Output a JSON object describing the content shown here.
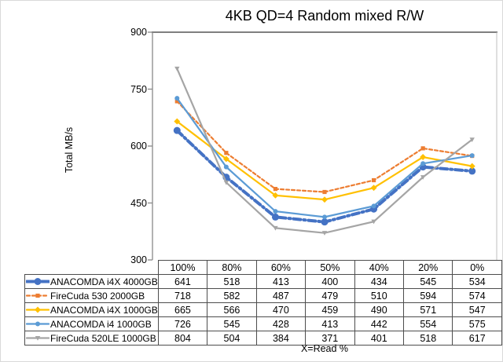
{
  "chart_data": {
    "type": "line",
    "title": "4KB QD=4 Random mixed R/W",
    "ylabel": "Total MB/s",
    "xlabel": "X=Read %",
    "categories": [
      "100%",
      "80%",
      "60%",
      "50%",
      "40%",
      "20%",
      "0%"
    ],
    "series": [
      {
        "name": "ANACOMDA i4X 4000GB",
        "values": [
          641,
          518,
          413,
          400,
          434,
          545,
          534
        ],
        "color": "#4472C4",
        "dash": "9 4 2 4",
        "width": 4,
        "marker": "circle",
        "marker_size": 4.5
      },
      {
        "name": "FireCuda 530 2000GB",
        "values": [
          718,
          582,
          487,
          479,
          510,
          594,
          574
        ],
        "color": "#ED7D31",
        "dash": "4 3",
        "width": 2.2,
        "marker": "square",
        "marker_size": 2.6
      },
      {
        "name": "ANACOMDA i4X 1000GB",
        "values": [
          665,
          566,
          470,
          459,
          490,
          571,
          547
        ],
        "color": "#FFC000",
        "dash": "",
        "width": 2.2,
        "marker": "diamond",
        "marker_size": 2.8
      },
      {
        "name": "ANACOMDA i4 1000GB",
        "values": [
          726,
          545,
          428,
          413,
          442,
          554,
          575
        ],
        "color": "#5B9BD5",
        "dash": "",
        "width": 2.2,
        "marker": "circle",
        "marker_size": 3
      },
      {
        "name": "FireCuda 520LE 1000GB",
        "values": [
          804,
          504,
          384,
          371,
          401,
          518,
          617
        ],
        "color": "#A5A5A5",
        "dash": "",
        "width": 2.2,
        "marker": "triangle-down",
        "marker_size": 3.2
      }
    ],
    "ylim": [
      300,
      900
    ],
    "yticks": [
      300,
      450,
      600,
      750,
      900
    ],
    "grid": false,
    "legend_position": "data-table",
    "axis_color": "#898989",
    "plot_top_border_color": "#7f7f7f",
    "plot_right_border_color": "#bfbfbf",
    "table_border_color": "#4d4d4d"
  }
}
